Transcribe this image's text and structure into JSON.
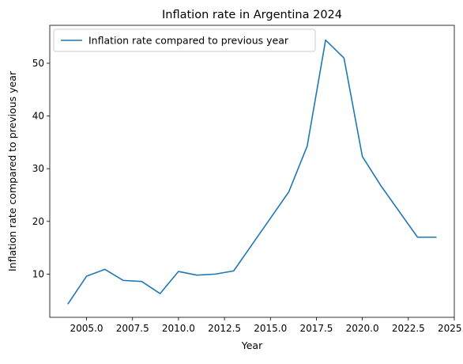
{
  "chart_data": {
    "type": "line",
    "title": "Inflation rate in Argentina 2024",
    "xlabel": "Year",
    "ylabel": "Inflation rate compared to previous year",
    "xlim": [
      2003,
      2025
    ],
    "ylim": [
      1.8,
      57.2
    ],
    "xticks": [
      2005.0,
      2007.5,
      2010.0,
      2012.5,
      2015.0,
      2017.5,
      2020.0,
      2022.5,
      2025.0
    ],
    "xtick_labels": [
      "2005.0",
      "2007.5",
      "2010.0",
      "2012.5",
      "2015.0",
      "2017.5",
      "2020.0",
      "2022.5",
      "2025.0"
    ],
    "yticks": [
      10,
      20,
      30,
      40,
      50
    ],
    "ytick_labels": [
      "10",
      "20",
      "30",
      "40",
      "50"
    ],
    "grid": false,
    "legend_position": "top-left",
    "series": [
      {
        "name": "Inflation rate compared to previous year",
        "color": "#1f77b4",
        "x": [
          2004,
          2005,
          2006,
          2007,
          2008,
          2009,
          2010,
          2011,
          2012,
          2013,
          2014,
          2015,
          2016,
          2017,
          2018,
          2019,
          2020,
          2021,
          2022,
          2023,
          2024
        ],
        "y": [
          4.4,
          9.6,
          10.9,
          8.8,
          8.6,
          6.3,
          10.5,
          9.8,
          10.0,
          10.6,
          15.6,
          20.6,
          25.6,
          34.3,
          54.4,
          51.0,
          32.3,
          26.8,
          21.9,
          17.0,
          17.0
        ]
      }
    ]
  }
}
